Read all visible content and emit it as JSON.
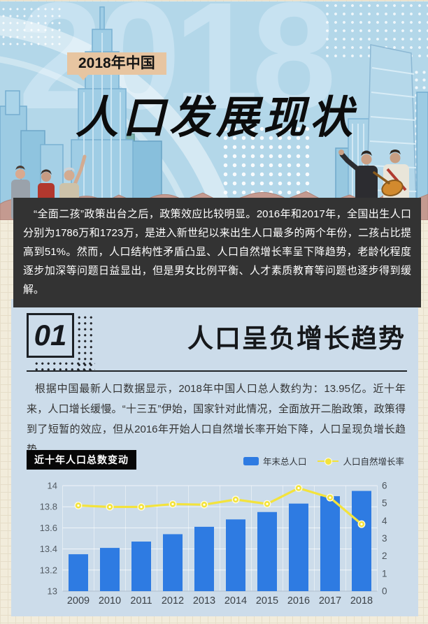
{
  "theme": {
    "page_bg": "#f2ecdb",
    "grid_line": "#e6dec9",
    "header_bg": "#b3d7e9",
    "tag_bg": "#e7c5a1",
    "intro_bg": "#333333",
    "panel_bg": "#ccdcea"
  },
  "header": {
    "ghost_year": "2018",
    "tag": "2018年中国",
    "title": "人口发展现状"
  },
  "intro": {
    "text": "“全面二孩”政策出台之后，政策效应比较明显。2016年和2017年，全国出生人口分别为1786万和1723万，是进入新世纪以来出生人口最多的两个年份，二孩占比提高到51%。然而，人口结构性矛盾凸显、人口自然增长率呈下降趋势，老龄化程度逐步加深等问题日益显出，但是男女比例平衡、人才素质教育等问题也逐步得到缓解。"
  },
  "section": {
    "number": "01",
    "title": "人口呈负增长趋势",
    "body": "根据中国最新人口数据显示，2018年中国人口总人数约为：13.95亿。近十年来，人口增长缓慢。“十三五”伊始，国家针对此情况，全面放开二胎政策，政策得到了短暂的效应，但从2016年开始人口自然增长率开始下降，人口呈现负增长趋势。"
  },
  "chart_data": {
    "type": "bar",
    "combo": "bar+line (dual axis)",
    "title": "近十年人口总数变动",
    "categories": [
      "2009",
      "2010",
      "2011",
      "2012",
      "2013",
      "2014",
      "2015",
      "2016",
      "2017",
      "2018"
    ],
    "series": [
      {
        "name": "年末总人口",
        "type": "bar",
        "axis": "left",
        "color": "#2e7be2",
        "values": [
          13.35,
          13.41,
          13.47,
          13.54,
          13.61,
          13.68,
          13.75,
          13.83,
          13.9,
          13.95
        ]
      },
      {
        "name": "人口自然增长率",
        "type": "line",
        "axis": "right",
        "color": "#f3e33c",
        "values": [
          4.87,
          4.79,
          4.79,
          4.95,
          4.92,
          5.21,
          4.96,
          5.86,
          5.32,
          3.81
        ]
      }
    ],
    "left_axis": {
      "min": 13,
      "max": 14,
      "ticks": [
        "13",
        "13.2",
        "13.4",
        "13.6",
        "13.8",
        "14"
      ]
    },
    "right_axis": {
      "min": 0,
      "max": 6,
      "ticks": [
        "0",
        "1",
        "2",
        "3",
        "4",
        "5",
        "6"
      ]
    },
    "legend_position": "top-right",
    "grid": true
  }
}
